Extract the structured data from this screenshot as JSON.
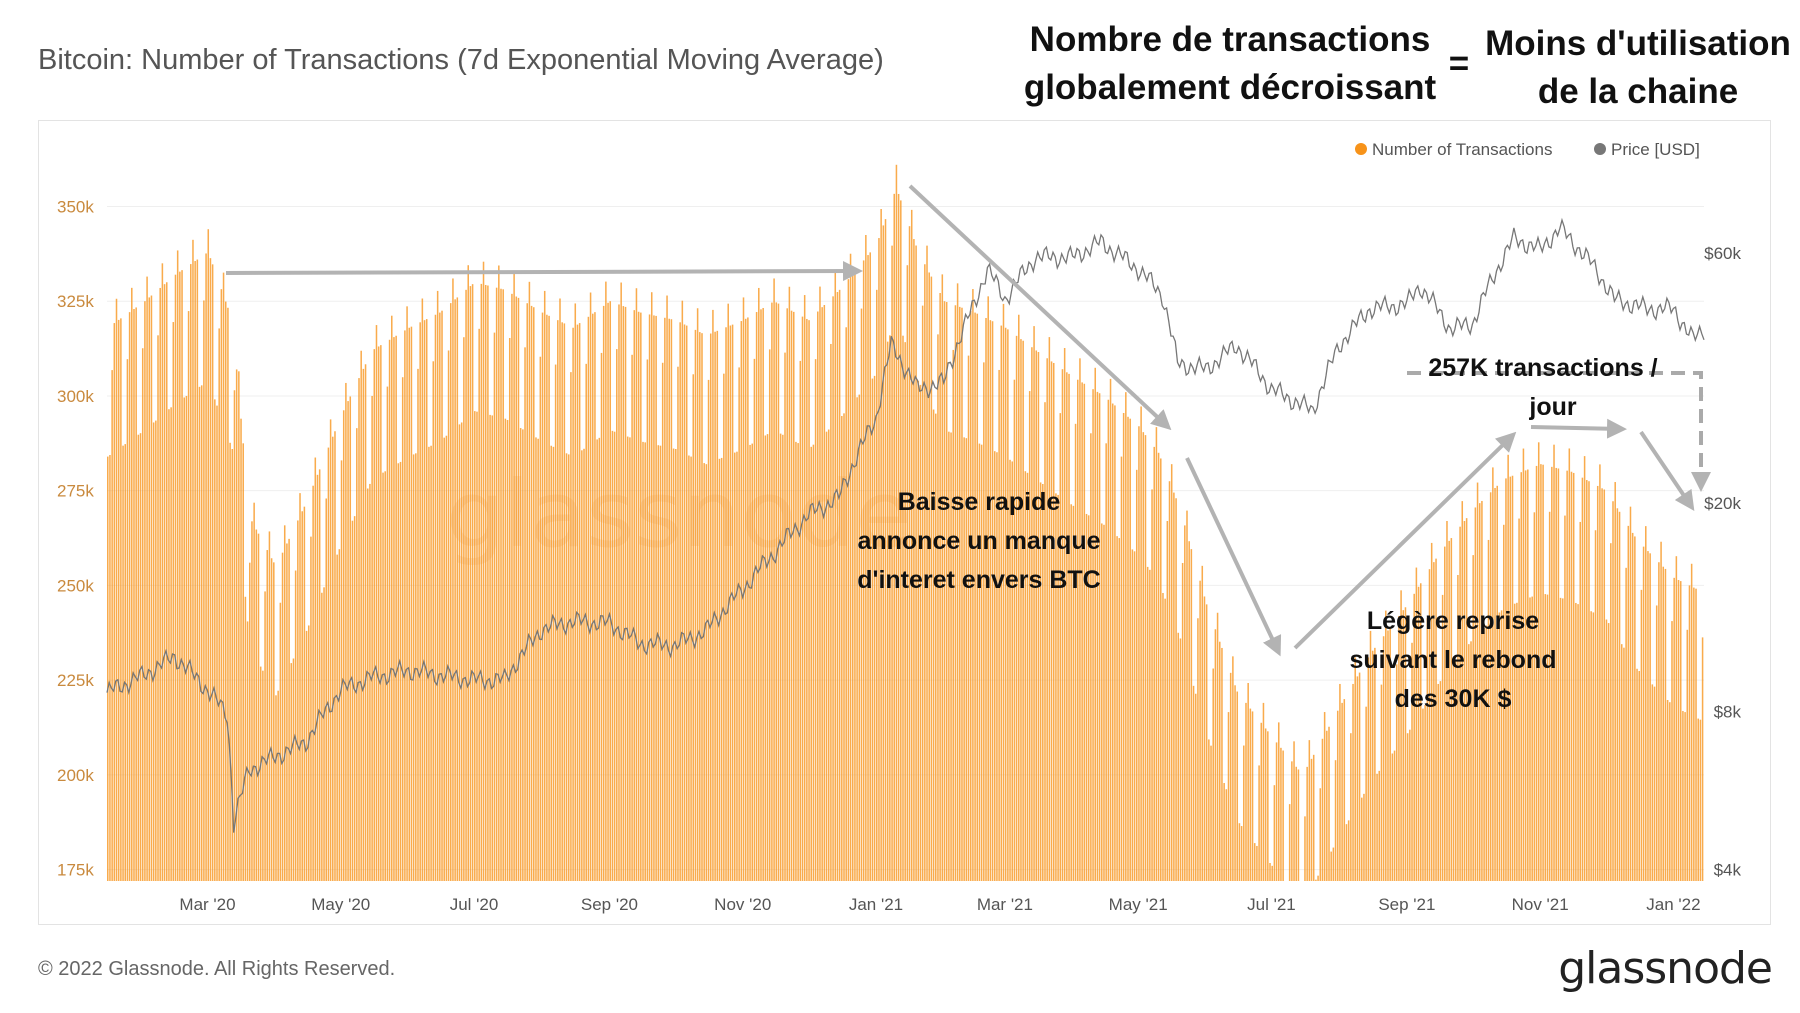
{
  "header": {
    "title": "Bitcoin: Number of Transactions (7d Exponential Moving Average)",
    "annotation_left": [
      "Nombre de transactions",
      "globalement décroissant"
    ],
    "equals": "=",
    "annotation_right": [
      "Moins d'utilisation",
      "de la chaine"
    ]
  },
  "chart_data": {
    "type": "bar",
    "title": "Bitcoin: Number of Transactions (7d Exponential Moving Average)",
    "xlabel": "",
    "ylabel": "",
    "x_ticks": [
      "Mar '20",
      "May '20",
      "Jul '20",
      "Sep '20",
      "Nov '20",
      "Jan '21",
      "Mar '21",
      "May '21",
      "Jul '21",
      "Sep '21",
      "Nov '21",
      "Jan '22"
    ],
    "x_range": [
      "2020-01-15",
      "2022-01-15"
    ],
    "y_left": {
      "ticks": [
        175000,
        200000,
        225000,
        250000,
        275000,
        300000,
        325000,
        350000
      ],
      "tick_labels": [
        "175k",
        "200k",
        "225k",
        "250k",
        "275k",
        "300k",
        "325k",
        "350k"
      ],
      "ylim": [
        172000,
        362000
      ]
    },
    "y_right": {
      "scale": "log",
      "ticks": [
        4000,
        8000,
        20000,
        60000
      ],
      "tick_labels": [
        "$4k",
        "$8k",
        "$20k",
        "$60k"
      ],
      "ylim": [
        3800,
        90000
      ]
    },
    "legend": {
      "position": "top-right",
      "items": [
        {
          "label": "Number of Transactions",
          "color": "#f7931a"
        },
        {
          "label": "Price [USD]",
          "color": "#777777"
        }
      ]
    },
    "watermark": "glassnode",
    "series": [
      {
        "name": "Number of Transactions",
        "axis": "left",
        "color": "#f7931a",
        "x": [
          "2020-01-15",
          "2020-02-01",
          "2020-02-15",
          "2020-03-01",
          "2020-03-12",
          "2020-03-20",
          "2020-04-01",
          "2020-04-15",
          "2020-05-01",
          "2020-05-15",
          "2020-06-01",
          "2020-06-15",
          "2020-07-01",
          "2020-07-15",
          "2020-08-01",
          "2020-08-15",
          "2020-09-01",
          "2020-09-15",
          "2020-10-01",
          "2020-10-15",
          "2020-11-01",
          "2020-11-15",
          "2020-12-01",
          "2020-12-15",
          "2021-01-01",
          "2021-01-10",
          "2021-01-20",
          "2021-02-01",
          "2021-02-15",
          "2021-03-01",
          "2021-03-15",
          "2021-04-01",
          "2021-04-15",
          "2021-05-01",
          "2021-05-10",
          "2021-05-20",
          "2021-06-01",
          "2021-06-15",
          "2021-07-01",
          "2021-07-15",
          "2021-08-01",
          "2021-08-15",
          "2021-09-01",
          "2021-09-15",
          "2021-10-01",
          "2021-10-15",
          "2021-11-01",
          "2021-11-15",
          "2021-12-01",
          "2021-12-15",
          "2022-01-01",
          "2022-01-15"
        ],
        "values": [
          318000,
          325000,
          332000,
          338000,
          320000,
          268000,
          255000,
          272000,
          295000,
          312000,
          318000,
          322000,
          330000,
          328000,
          322000,
          318000,
          325000,
          322000,
          320000,
          316000,
          320000,
          325000,
          320000,
          328000,
          340000,
          355000,
          338000,
          325000,
          322000,
          318000,
          312000,
          305000,
          300000,
          292000,
          285000,
          270000,
          245000,
          222000,
          210000,
          200000,
          218000,
          232000,
          245000,
          258000,
          270000,
          278000,
          282000,
          280000,
          275000,
          262000,
          252000,
          248000
        ]
      },
      {
        "name": "Price [USD]",
        "axis": "right",
        "color": "#777777",
        "x": [
          "2020-01-15",
          "2020-02-01",
          "2020-02-15",
          "2020-03-01",
          "2020-03-10",
          "2020-03-13",
          "2020-03-20",
          "2020-04-15",
          "2020-05-01",
          "2020-05-15",
          "2020-06-01",
          "2020-06-15",
          "2020-07-01",
          "2020-07-15",
          "2020-08-01",
          "2020-08-15",
          "2020-09-01",
          "2020-09-15",
          "2020-10-01",
          "2020-10-15",
          "2020-11-01",
          "2020-11-15",
          "2020-12-01",
          "2020-12-15",
          "2021-01-01",
          "2021-01-08",
          "2021-01-20",
          "2021-02-01",
          "2021-02-15",
          "2021-02-21",
          "2021-03-01",
          "2021-03-15",
          "2021-04-01",
          "2021-04-14",
          "2021-05-01",
          "2021-05-12",
          "2021-05-19",
          "2021-06-01",
          "2021-06-15",
          "2021-07-01",
          "2021-07-20",
          "2021-08-01",
          "2021-08-15",
          "2021-09-01",
          "2021-09-07",
          "2021-09-21",
          "2021-10-01",
          "2021-10-20",
          "2021-11-01",
          "2021-11-10",
          "2021-11-25",
          "2021-12-05",
          "2021-12-20",
          "2022-01-01",
          "2022-01-10",
          "2022-01-15"
        ],
        "values": [
          8700,
          9400,
          10200,
          8800,
          7900,
          4900,
          6200,
          7000,
          8800,
          9300,
          9600,
          9400,
          9200,
          9200,
          11500,
          11900,
          11800,
          10800,
          10700,
          11400,
          13700,
          16000,
          19000,
          20500,
          29000,
          40000,
          33000,
          34000,
          48000,
          56000,
          49000,
          59000,
          59000,
          63000,
          56000,
          50000,
          37000,
          36000,
          40000,
          33000,
          30000,
          40000,
          47000,
          48000,
          52000,
          43000,
          44000,
          64000,
          61000,
          67000,
          57000,
          49000,
          47000,
          47000,
          41000,
          43000
        ]
      }
    ],
    "annotations": [
      {
        "text": [
          "Baisse rapide",
          "annonce un manque",
          "d'interet envers BTC"
        ],
        "anchor": "2021-03-15"
      },
      {
        "text": [
          "Légère reprise",
          "suivant le rebond",
          "des 30K $"
        ],
        "anchor": "2021-10-01"
      },
      {
        "text": [
          "257K transactions /",
          "jour"
        ],
        "anchor": "2021-11-01"
      }
    ]
  },
  "footer": {
    "copyright": "© 2022 Glassnode. All Rights Reserved.",
    "logo": "glassnode"
  }
}
